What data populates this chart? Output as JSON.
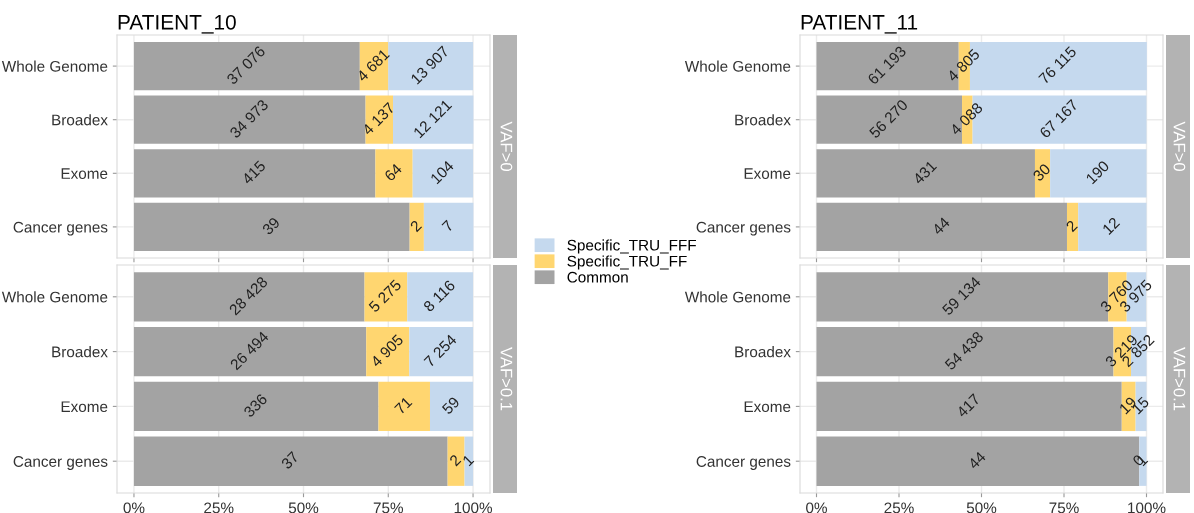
{
  "chart_data": [
    {
      "type": "bar",
      "orientation": "horizontal",
      "stacked": true,
      "title": "PATIENT_10",
      "ylabel": "VAF>0",
      "categories": [
        "Whole Genome",
        "Broadex",
        "Exome",
        "Cancer genes"
      ],
      "xlim": [
        -5,
        105
      ],
      "xticks": [
        {
          "value": 0,
          "label": "0%"
        },
        {
          "value": 25,
          "label": "25%"
        },
        {
          "value": 50,
          "label": "50%"
        },
        {
          "value": 75,
          "label": "75%"
        },
        {
          "value": 100,
          "label": "100%"
        }
      ],
      "tick_labels": "y",
      "grid": true,
      "legend": "right",
      "series": [
        {
          "name": "Common",
          "color": "#a3a3a3",
          "values": [
            66.6,
            68.3,
            71.2,
            81.3
          ]
        },
        {
          "name": "Specific_TRU_FF",
          "color": "#ffd670",
          "values": [
            8.4,
            8.1,
            11.0,
            4.2
          ]
        },
        {
          "name": "Specific_TRU_FFF",
          "color": "#c5d9ee",
          "values": [
            25.0,
            23.7,
            17.8,
            14.6
          ]
        }
      ],
      "annotations": [
        {
          "text": "37 076",
          "x": 33.3,
          "y": "Whole Genome"
        },
        {
          "text": "4 681",
          "x": 70.8,
          "y": "Whole Genome"
        },
        {
          "text": "13 907",
          "x": 87.5,
          "y": "Whole Genome"
        },
        {
          "text": "34 973",
          "x": 34.2,
          "y": "Broadex"
        },
        {
          "text": "4 137",
          "x": 72.4,
          "y": "Broadex"
        },
        {
          "text": "12 121",
          "x": 88.3,
          "y": "Broadex"
        },
        {
          "text": "415",
          "x": 35.6,
          "y": "Exome"
        },
        {
          "text": "64",
          "x": 76.7,
          "y": "Exome"
        },
        {
          "text": "104",
          "x": 91.1,
          "y": "Exome"
        },
        {
          "text": "39",
          "x": 40.7,
          "y": "Cancer genes"
        },
        {
          "text": "2",
          "x": 83.4,
          "y": "Cancer genes"
        },
        {
          "text": "7",
          "x": 92.8,
          "y": "Cancer genes"
        }
      ]
    },
    {
      "type": "bar",
      "orientation": "horizontal",
      "stacked": true,
      "ylabel": "VAF>0.1",
      "categories": [
        "Whole Genome",
        "Broadex",
        "Exome",
        "Cancer genes"
      ],
      "xlim": [
        -5,
        105
      ],
      "xticks": [
        {
          "value": 0,
          "label": "0%"
        },
        {
          "value": 25,
          "label": "25%"
        },
        {
          "value": 50,
          "label": "50%"
        },
        {
          "value": 75,
          "label": "75%"
        },
        {
          "value": 100,
          "label": "100%"
        }
      ],
      "grid": true,
      "series": [
        {
          "color": "#a3a3a3",
          "values": [
            68.0,
            68.5,
            72.1,
            92.5
          ]
        },
        {
          "color": "#ffd670",
          "values": [
            12.6,
            12.7,
            15.2,
            5.0
          ]
        },
        {
          "color": "#c5d9ee",
          "values": [
            19.4,
            18.8,
            12.7,
            2.5
          ]
        }
      ],
      "annotations": [
        {
          "text": "28 428",
          "x": 34.0,
          "y": "Whole Genome"
        },
        {
          "text": "5 275",
          "x": 74.3,
          "y": "Whole Genome"
        },
        {
          "text": "8 116",
          "x": 90.3,
          "y": "Whole Genome"
        },
        {
          "text": "26 494",
          "x": 34.3,
          "y": "Broadex"
        },
        {
          "text": "4 905",
          "x": 74.9,
          "y": "Broadex"
        },
        {
          "text": "7 254",
          "x": 90.6,
          "y": "Broadex"
        },
        {
          "text": "336",
          "x": 36.1,
          "y": "Exome"
        },
        {
          "text": "71",
          "x": 79.7,
          "y": "Exome"
        },
        {
          "text": "59",
          "x": 93.7,
          "y": "Exome"
        },
        {
          "text": "37",
          "x": 46.3,
          "y": "Cancer genes"
        },
        {
          "text": "2",
          "x": 95.0,
          "y": "Cancer genes"
        },
        {
          "text": "1",
          "x": 98.8,
          "y": "Cancer genes"
        }
      ]
    },
    {
      "type": "bar",
      "orientation": "horizontal",
      "stacked": true,
      "title": "PATIENT_11",
      "ylabel": "VAF>0",
      "categories": [
        "Whole Genome",
        "Broadex",
        "Exome",
        "Cancer genes"
      ],
      "xlim": [
        -5,
        105
      ],
      "xticks": [
        {
          "value": 0,
          "label": "0%"
        },
        {
          "value": 25,
          "label": "25%"
        },
        {
          "value": 50,
          "label": "50%"
        },
        {
          "value": 75,
          "label": "75%"
        },
        {
          "value": 100,
          "label": "100%"
        }
      ],
      "tick_labels": "y",
      "grid": true,
      "series": [
        {
          "color": "#a3a3a3",
          "values": [
            43.1,
            44.1,
            66.2,
            75.9
          ]
        },
        {
          "color": "#ffd670",
          "values": [
            3.4,
            3.2,
            4.6,
            3.4
          ]
        },
        {
          "color": "#c5d9ee",
          "values": [
            53.6,
            52.7,
            29.2,
            20.7
          ]
        }
      ],
      "annotations": [
        {
          "text": "61 193",
          "x": 21.6,
          "y": "Whole Genome"
        },
        {
          "text": "4 805",
          "x": 44.8,
          "y": "Whole Genome"
        },
        {
          "text": "76 115",
          "x": 73.3,
          "y": "Whole Genome"
        },
        {
          "text": "56 270",
          "x": 22.1,
          "y": "Broadex"
        },
        {
          "text": "4 088",
          "x": 45.7,
          "y": "Broadex"
        },
        {
          "text": "67 167",
          "x": 73.7,
          "y": "Broadex"
        },
        {
          "text": "431",
          "x": 33.1,
          "y": "Exome"
        },
        {
          "text": "30",
          "x": 68.5,
          "y": "Exome"
        },
        {
          "text": "190",
          "x": 85.4,
          "y": "Exome"
        },
        {
          "text": "44",
          "x": 38.0,
          "y": "Cancer genes"
        },
        {
          "text": "2",
          "x": 77.6,
          "y": "Cancer genes"
        },
        {
          "text": "12",
          "x": 89.5,
          "y": "Cancer genes"
        }
      ]
    },
    {
      "type": "bar",
      "orientation": "horizontal",
      "stacked": true,
      "ylabel": "VAF>0.1",
      "categories": [
        "Whole Genome",
        "Broadex",
        "Exome",
        "Cancer genes"
      ],
      "xlim": [
        -5,
        105
      ],
      "xticks": [
        {
          "value": 0,
          "label": "0%"
        },
        {
          "value": 25,
          "label": "25%"
        },
        {
          "value": 50,
          "label": "50%"
        },
        {
          "value": 75,
          "label": "75%"
        },
        {
          "value": 100,
          "label": "100%"
        }
      ],
      "grid": true,
      "series": [
        {
          "color": "#a3a3a3",
          "values": [
            88.4,
            90.0,
            92.5,
            97.8
          ]
        },
        {
          "color": "#ffd670",
          "values": [
            5.6,
            5.3,
            4.2,
            0.0
          ]
        },
        {
          "color": "#c5d9ee",
          "values": [
            5.9,
            4.7,
            3.3,
            2.2
          ]
        }
      ],
      "annotations": [
        {
          "text": "59 134",
          "x": 44.2,
          "y": "Whole Genome"
        },
        {
          "text": "3 760",
          "x": 91.2,
          "y": "Whole Genome"
        },
        {
          "text": "3 975",
          "x": 97.0,
          "y": "Whole Genome"
        },
        {
          "text": "54 438",
          "x": 45.0,
          "y": "Broadex"
        },
        {
          "text": "3 219",
          "x": 92.7,
          "y": "Broadex"
        },
        {
          "text": "2 852",
          "x": 97.7,
          "y": "Broadex"
        },
        {
          "text": "417",
          "x": 46.3,
          "y": "Exome"
        },
        {
          "text": "19",
          "x": 94.6,
          "y": "Exome"
        },
        {
          "text": "15",
          "x": 98.4,
          "y": "Exome"
        },
        {
          "text": "44",
          "x": 48.9,
          "y": "Cancer genes"
        },
        {
          "text": "0",
          "x": 97.8,
          "y": "Cancer genes"
        },
        {
          "text": "1",
          "x": 98.9,
          "y": "Cancer genes"
        }
      ]
    }
  ]
}
